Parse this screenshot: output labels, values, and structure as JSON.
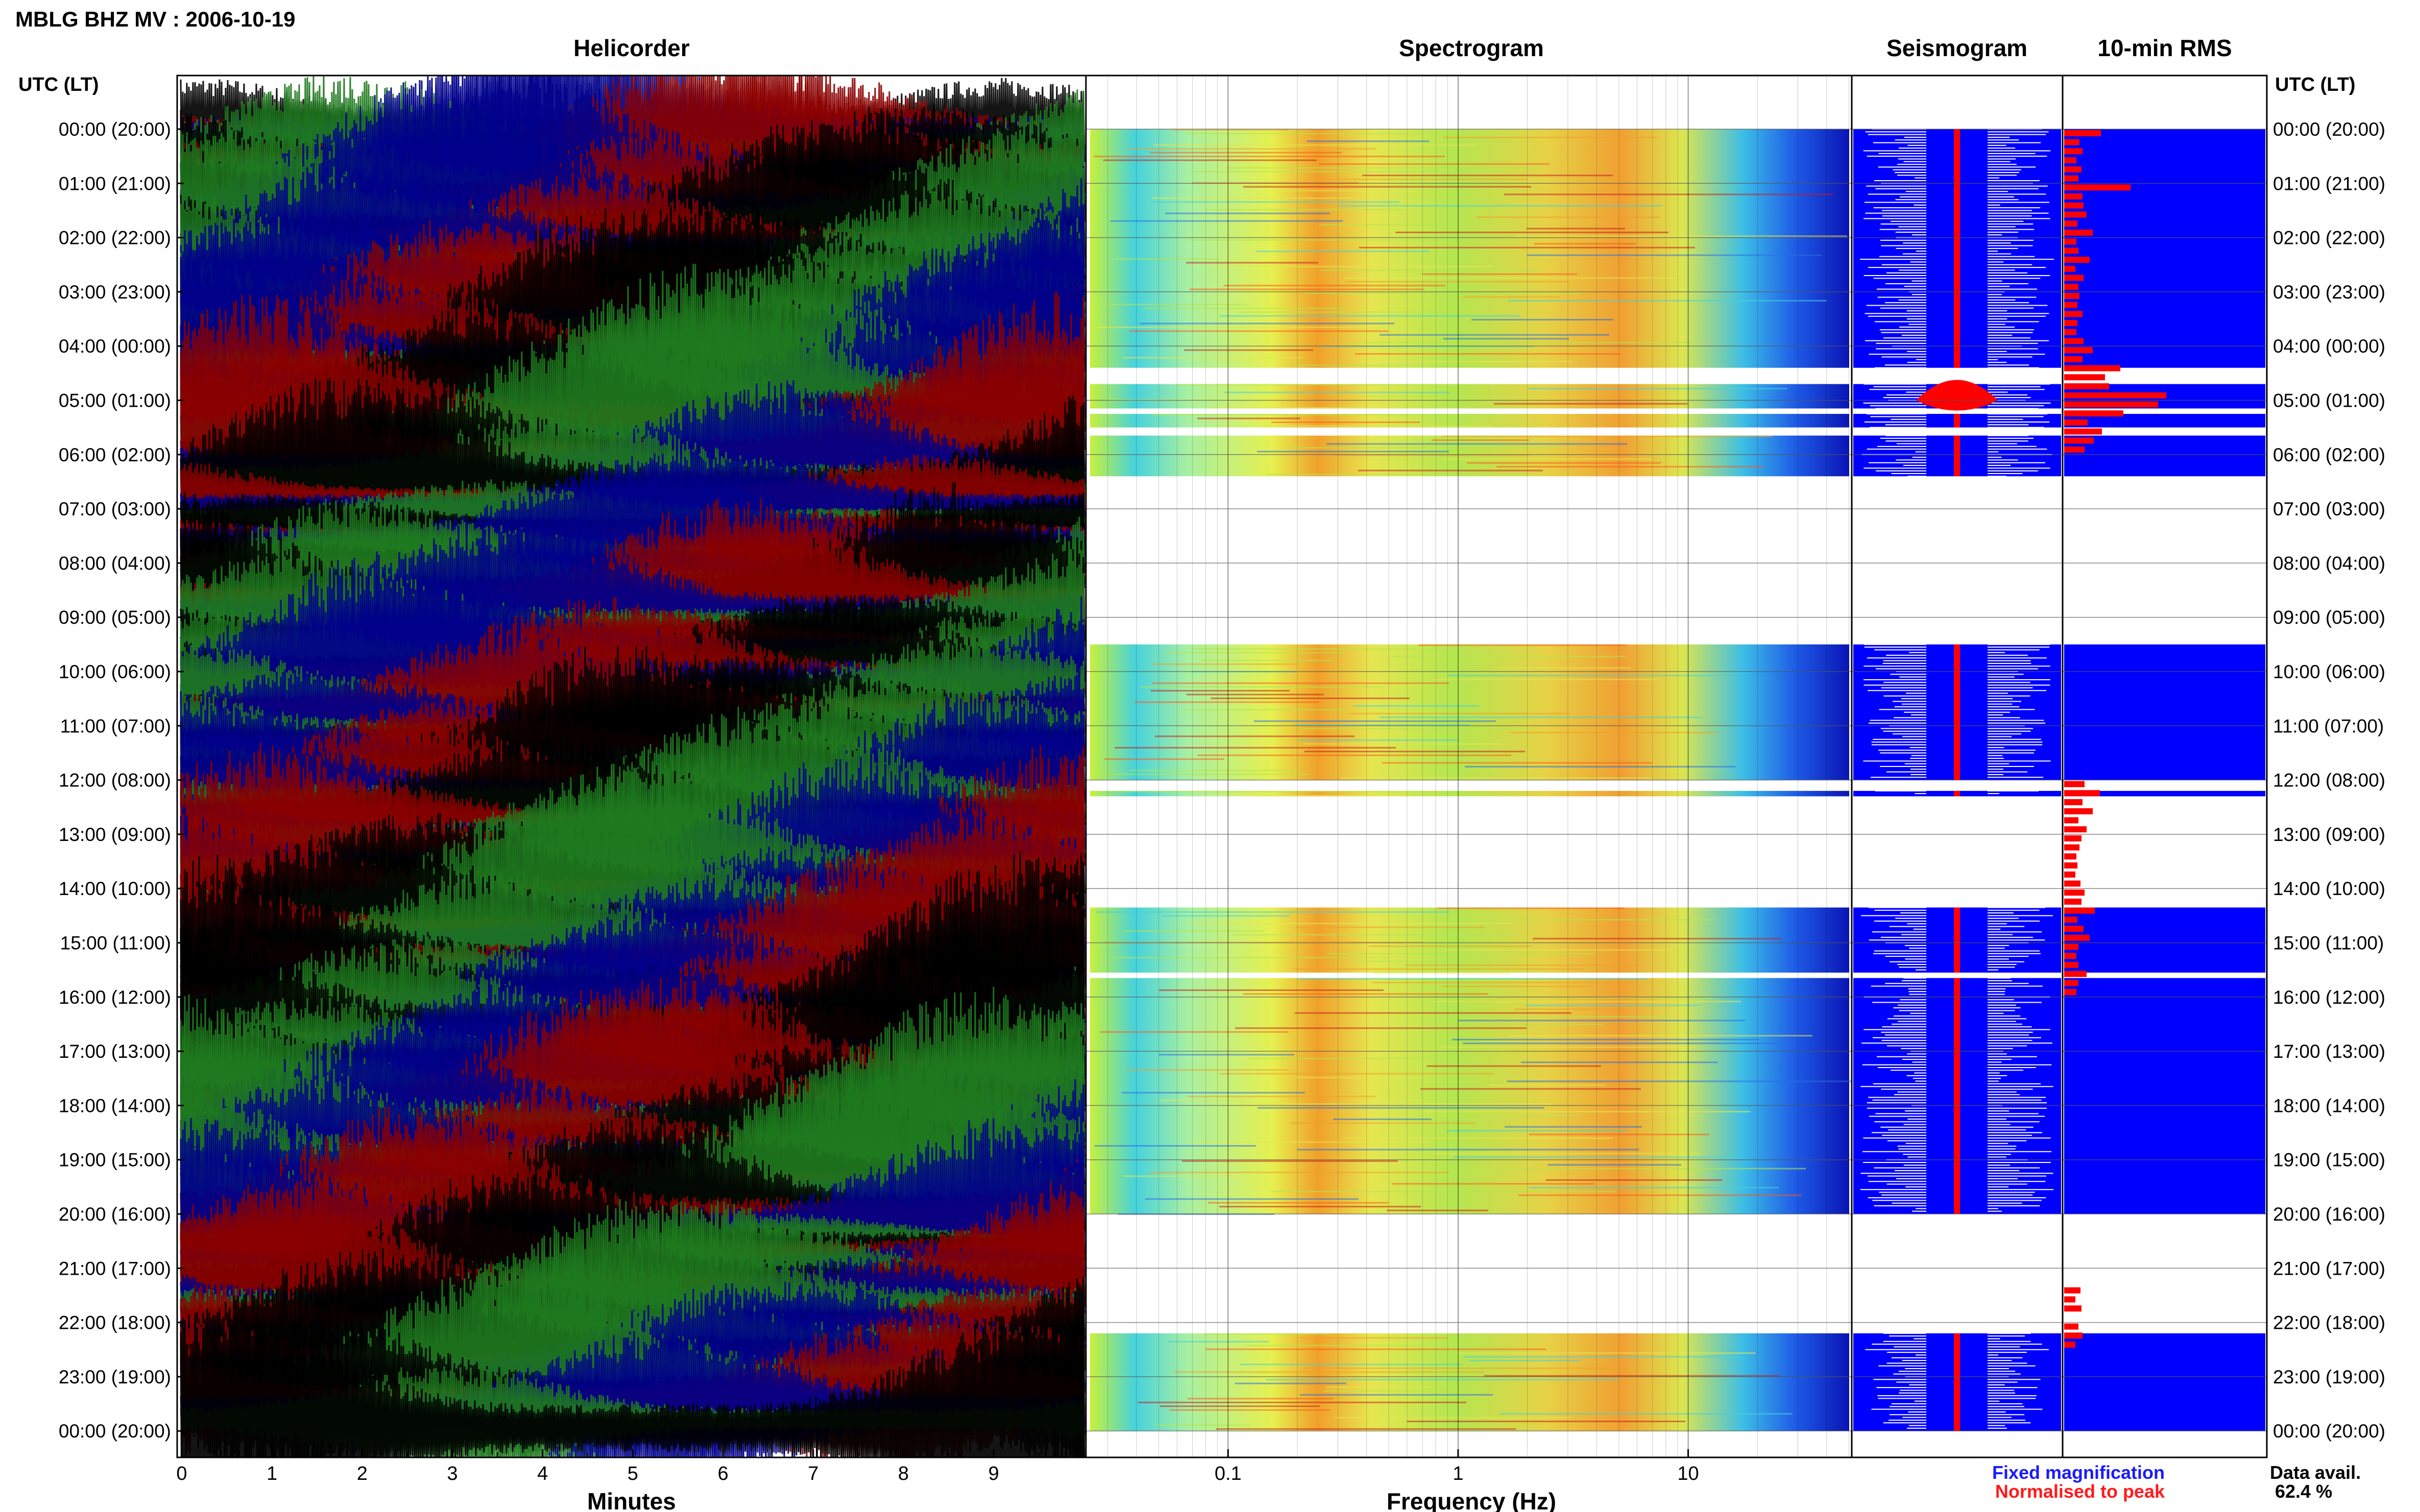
{
  "title": "MBLG BHZ MV : 2006-10-19",
  "panels": {
    "helicorder": "Helicorder",
    "spectrogram": "Spectrogram",
    "seismogram": "Seismogram",
    "rms": "10-min RMS"
  },
  "y_axis_label": "UTC (LT)",
  "hour_labels": [
    "00:00 (20:00)",
    "01:00 (21:00)",
    "02:00 (22:00)",
    "03:00 (23:00)",
    "04:00 (00:00)",
    "05:00 (01:00)",
    "06:00 (02:00)",
    "07:00 (03:00)",
    "08:00 (04:00)",
    "09:00 (05:00)",
    "10:00 (06:00)",
    "11:00 (07:00)",
    "12:00 (08:00)",
    "13:00 (09:00)",
    "14:00 (10:00)",
    "15:00 (11:00)",
    "16:00 (12:00)",
    "17:00 (13:00)",
    "18:00 (14:00)",
    "19:00 (15:00)",
    "20:00 (16:00)",
    "21:00 (17:00)",
    "22:00 (18:00)",
    "23:00 (19:00)",
    "00:00 (20:00)"
  ],
  "helicorder_axis": {
    "label": "Minutes",
    "ticks": [
      "0",
      "1",
      "2",
      "3",
      "4",
      "5",
      "6",
      "7",
      "8",
      "9"
    ]
  },
  "spectrogram_axis": {
    "label": "Frequency (Hz)",
    "ticks": [
      "0.1",
      "1",
      "10"
    ],
    "scale": "log"
  },
  "legend": {
    "fixed": "Fixed magnification",
    "fixed_color": "#1a1aff",
    "normalised": "Normalised to peak",
    "normalised_color": "#ff1a1a"
  },
  "availability": {
    "label": "Data avail.",
    "value": "62.4 %"
  },
  "colors": {
    "trace_cycle": [
      "#000000",
      "#8b0000",
      "#00008b",
      "#1e7a1e"
    ],
    "fixed_fill": "#0000ff",
    "normalised_fill": "#ff0000"
  },
  "chart_data": {
    "type": "heatmap",
    "title": "MBLG BHZ MV : 2006-10-19",
    "data_gaps_utc_hours": [
      [
        4.4,
        4.7
      ],
      [
        5.15,
        5.25
      ],
      [
        5.5,
        5.65
      ],
      [
        6.4,
        9.5
      ],
      [
        12.0,
        12.2
      ],
      [
        12.3,
        14.35
      ],
      [
        15.55,
        15.65
      ],
      [
        20.0,
        22.2
      ]
    ],
    "rms_normalised": [
      0.36,
      0.15,
      0.18,
      0.12,
      0.17,
      0.14,
      0.65,
      0.18,
      0.19,
      0.22,
      0.13,
      0.28,
      0.12,
      0.14,
      0.25,
      0.11,
      0.19,
      0.14,
      0.15,
      0.13,
      0.18,
      0.13,
      0.12,
      0.19,
      0.28,
      0.18,
      0.55,
      0.4,
      0.44,
      1.0,
      0.92,
      0.58,
      0.23,
      0.37,
      0.29,
      0.2,
      0.0,
      0.0,
      0.0,
      0.0,
      0.0,
      0.0,
      0.0,
      0.0,
      0.0,
      0.0,
      0.0,
      0.0,
      0.0,
      0.0,
      0.0,
      0.0,
      0.0,
      0.0,
      0.0,
      0.0,
      0.0,
      0.0,
      0.0,
      0.0,
      0.0,
      0.0,
      0.0,
      0.0,
      0.0,
      0.0,
      0.0,
      0.0,
      0.0,
      0.0,
      0.0,
      0.0,
      0.2,
      0.35,
      0.18,
      0.28,
      0.14,
      0.22,
      0.17,
      0.15,
      0.12,
      0.13,
      0.11,
      0.16,
      0.2,
      0.17,
      0.3,
      0.13,
      0.19,
      0.25,
      0.14,
      0.12,
      0.14,
      0.22,
      0.14,
      0.12,
      0.0,
      0.0,
      0.0,
      0.0,
      0.0,
      0.0,
      0.0,
      0.0,
      0.0,
      0.0,
      0.0,
      0.0,
      0.0,
      0.0,
      0.0,
      0.0,
      0.0,
      0.0,
      0.0,
      0.0,
      0.0,
      0.0,
      0.0,
      0.0,
      0.0,
      0.0,
      0.0,
      0.0,
      0.0,
      0.0,
      0.0,
      0.0,
      0.16,
      0.11,
      0.17,
      0.0,
      0.14,
      0.18,
      0.11,
      0.0,
      0.0,
      0.0,
      0.0,
      0.0,
      0.0,
      0.0,
      0.0,
      0.0,
      0.0,
      0.0,
      0.0,
      0.0,
      0.0,
      0.0,
      0.0,
      0.0,
      0.0,
      0.0,
      0.0,
      0.0,
      0.0,
      0.0,
      0.0,
      0.0,
      0.0,
      0.0,
      0.0,
      0.0,
      0.0,
      0.0,
      0.0,
      0.0,
      0.0,
      0.0,
      0.0,
      0.0,
      0.0,
      0.0,
      0.0,
      0.0,
      0.0,
      0.0,
      0.0,
      0.0,
      0.0,
      0.0,
      0.0,
      0.0,
      0.0,
      0.0,
      0.0,
      0.0,
      0.0,
      0.0,
      0.0,
      0.0,
      0.0,
      0.0,
      0.0,
      0.0,
      0.0,
      0.0,
      0.0,
      0.0,
      0.0,
      0.0,
      0.0,
      0.0,
      0.0,
      0.0,
      0.0,
      0.0,
      0.0,
      0.0,
      0.0,
      0.0,
      0.0,
      0.0,
      0.0,
      0.0,
      0.0,
      0.0,
      0.0,
      0.0,
      0.0,
      0.0,
      0.0,
      0.0,
      0.0,
      0.0,
      0.0,
      0.0,
      0.0,
      0.0,
      0.0,
      0.0,
      0.0,
      0.0,
      0.0,
      0.0,
      0.0,
      0.0,
      0.0,
      0.0,
      0.0,
      0.0,
      0.0,
      0.0,
      0.0,
      0.0,
      0.0,
      0.0,
      0.0,
      0.0,
      0.0,
      0.0
    ]
  }
}
